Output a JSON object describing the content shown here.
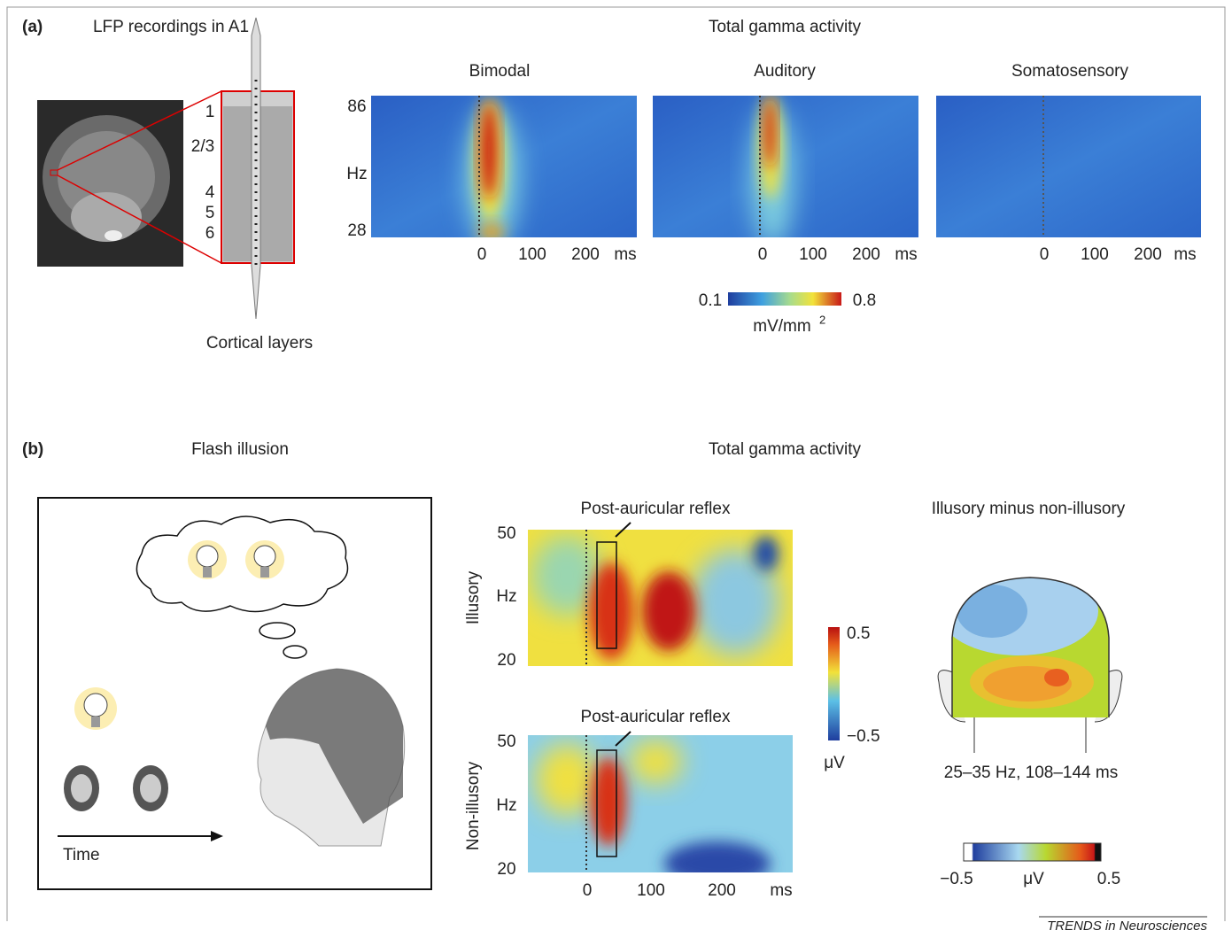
{
  "panel_a": {
    "label": "(a)",
    "left_title": "LFP recordings in A1",
    "layers": [
      "1",
      "2/3",
      "4",
      "5",
      "6"
    ],
    "layers_caption": "Cortical layers",
    "title": "Total gamma activity",
    "plots": [
      "Bimodal",
      "Auditory",
      "Somatosensory"
    ],
    "y_top": "86",
    "y_unit": "Hz",
    "y_bottom": "28",
    "x_ticks": [
      "0",
      "100",
      "200"
    ],
    "x_unit": "ms",
    "colorbar": {
      "min": "0.1",
      "max": "0.8",
      "unit": "mV/mm",
      "unit_sup": "2"
    }
  },
  "panel_b": {
    "label": "(b)",
    "left_title": "Flash illusion",
    "time_label": "Time",
    "title": "Total gamma activity",
    "plots": [
      {
        "title": "Post-auricular reflex",
        "row_label": "Illusory"
      },
      {
        "title": "Post-auricular reflex",
        "row_label": "Non-illusory"
      }
    ],
    "y_top": "50",
    "y_unit": "Hz",
    "y_bottom": "20",
    "x_ticks": [
      "0",
      "100",
      "200"
    ],
    "x_unit": "ms",
    "colorbar": {
      "max": "0.5",
      "min": "−0.5",
      "unit": "μV"
    },
    "topo": {
      "title": "Illusory minus non-illusory",
      "caption": "25–35 Hz, 108–144 ms",
      "scale_min": "−0.5",
      "scale_unit": "μV",
      "scale_max": "0.5"
    }
  },
  "footer": "TRENDS in Neurosciences"
}
